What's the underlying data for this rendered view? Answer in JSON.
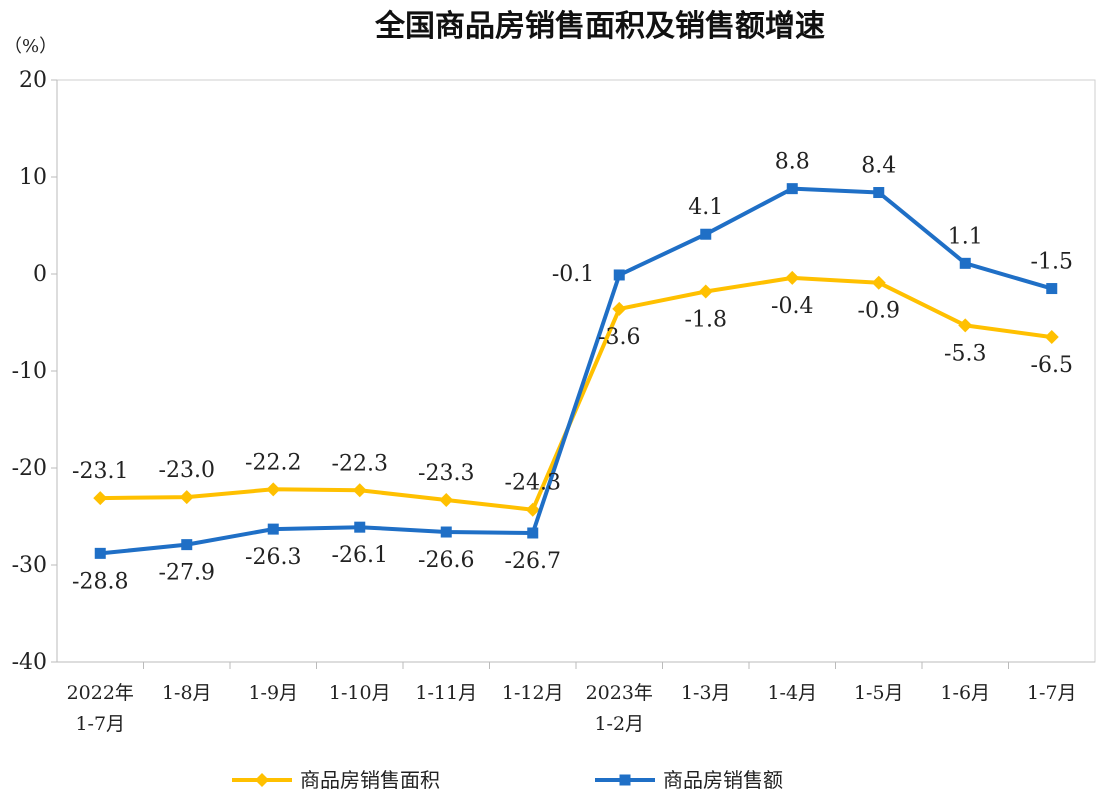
{
  "chart_data": {
    "type": "line",
    "title": "全国商品房销售面积及销售额增速",
    "unit": "（%）",
    "categories": [
      [
        "2022年",
        "1-7月"
      ],
      [
        "1-8月"
      ],
      [
        "1-9月"
      ],
      [
        "1-10月"
      ],
      [
        "1-11月"
      ],
      [
        "1-12月"
      ],
      [
        "2023年",
        "1-2月"
      ],
      [
        "1-3月"
      ],
      [
        "1-4月"
      ],
      [
        "1-5月"
      ],
      [
        "1-6月"
      ],
      [
        "1-7月"
      ]
    ],
    "ylim": [
      -40,
      20
    ],
    "yticks": [
      20,
      10,
      0,
      -10,
      -20,
      -30,
      -40
    ],
    "grid": false,
    "legend_position": "bottom",
    "series": [
      {
        "name": "商品房销售面积",
        "color": "#FFC000",
        "marker": "diamond",
        "values": [
          -23.1,
          -23.0,
          -22.2,
          -22.3,
          -23.3,
          -24.3,
          -3.6,
          -1.8,
          -0.4,
          -0.9,
          -5.3,
          -6.5
        ],
        "labels": [
          "-23.1",
          "-23.0",
          "-22.2",
          "-22.3",
          "-23.3",
          "-24.3",
          "-3.6",
          "-1.8",
          "-0.4",
          "-0.9",
          "-5.3",
          "-6.5"
        ],
        "label_pos": [
          "above",
          "above",
          "above",
          "above",
          "above",
          "above",
          "below",
          "below",
          "below",
          "below",
          "below",
          "below"
        ]
      },
      {
        "name": "商品房销售额",
        "color": "#1F6FC6",
        "marker": "square",
        "values": [
          -28.8,
          -27.9,
          -26.3,
          -26.1,
          -26.6,
          -26.7,
          -0.1,
          4.1,
          8.8,
          8.4,
          1.1,
          -1.5
        ],
        "labels": [
          "-28.8",
          "-27.9",
          "-26.3",
          "-26.1",
          "-26.6",
          "-26.7",
          "-0.1",
          "4.1",
          "8.8",
          "8.4",
          "1.1",
          "-1.5"
        ],
        "label_pos": [
          "below",
          "below",
          "below",
          "below",
          "below",
          "below",
          "above-left",
          "above",
          "above",
          "above",
          "above",
          "above"
        ]
      }
    ]
  }
}
